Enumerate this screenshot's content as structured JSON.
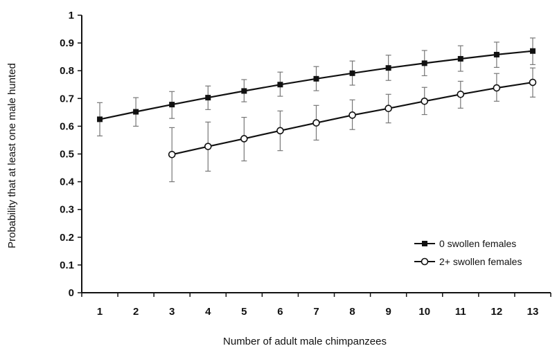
{
  "chart_data": {
    "type": "line",
    "xlabel": "Number of adult male chimpanzees",
    "ylabel": "Probability that at least one male hunted",
    "x": [
      1,
      2,
      3,
      4,
      5,
      6,
      7,
      8,
      9,
      10,
      11,
      12,
      13
    ],
    "xlim": [
      0.5,
      13.5
    ],
    "ylim": [
      0,
      1
    ],
    "yticks": [
      0,
      0.1,
      0.2,
      0.3,
      0.4,
      0.5,
      0.6,
      0.7,
      0.8,
      0.9,
      1
    ],
    "ytick_labels": [
      "0",
      "0.1",
      "0.2",
      "0.3",
      "0.4",
      "0.5",
      "0.6",
      "0.7",
      "0.8",
      "0.9",
      "1"
    ],
    "xtick_labels": [
      "1",
      "2",
      "3",
      "4",
      "5",
      "6",
      "7",
      "8",
      "9",
      "10",
      "11",
      "12",
      "13"
    ],
    "grid": false,
    "legend_position": "bottom-right",
    "series": [
      {
        "name": "0 swollen females",
        "marker": "filled-square",
        "color": "#111111",
        "x": [
          1,
          2,
          3,
          4,
          5,
          6,
          7,
          8,
          9,
          10,
          11,
          12,
          13
        ],
        "values": [
          0.625,
          0.652,
          0.678,
          0.703,
          0.727,
          0.75,
          0.771,
          0.791,
          0.81,
          0.827,
          0.843,
          0.858,
          0.871
        ],
        "err_low": [
          0.565,
          0.6,
          0.628,
          0.66,
          0.688,
          0.708,
          0.728,
          0.748,
          0.765,
          0.782,
          0.798,
          0.812,
          0.822
        ],
        "err_high": [
          0.685,
          0.703,
          0.725,
          0.745,
          0.768,
          0.795,
          0.815,
          0.835,
          0.856,
          0.873,
          0.89,
          0.903,
          0.918
        ]
      },
      {
        "name": "2+ swollen females",
        "marker": "open-circle",
        "color": "#111111",
        "x": [
          3,
          4,
          5,
          6,
          7,
          8,
          9,
          10,
          11,
          12,
          13
        ],
        "values": [
          0.498,
          0.527,
          0.555,
          0.584,
          0.612,
          0.64,
          0.664,
          0.69,
          0.715,
          0.738,
          0.758
        ],
        "err_low": [
          0.4,
          0.438,
          0.475,
          0.512,
          0.55,
          0.588,
          0.612,
          0.642,
          0.665,
          0.69,
          0.705
        ],
        "err_high": [
          0.595,
          0.615,
          0.632,
          0.655,
          0.675,
          0.695,
          0.715,
          0.74,
          0.762,
          0.79,
          0.81
        ]
      }
    ]
  }
}
